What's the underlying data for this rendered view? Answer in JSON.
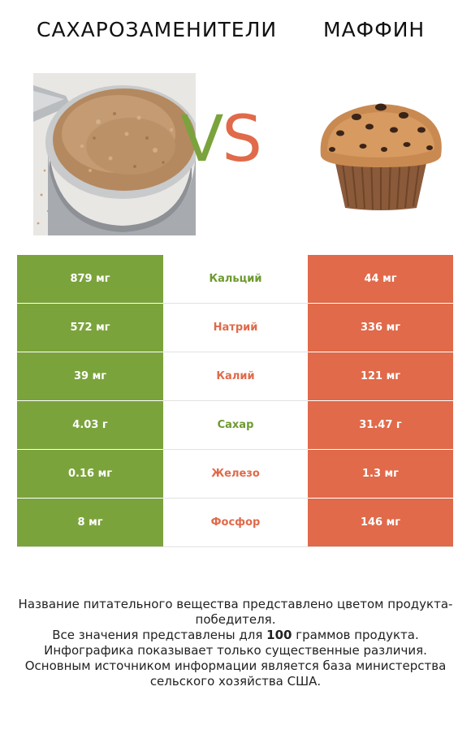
{
  "header": {
    "left_title": "САХАРОЗАМЕНИТЕЛИ",
    "right_title": "МАФФИН",
    "vs_v": "V",
    "vs_s": "S"
  },
  "colors": {
    "winner_left": "#7ba33c",
    "winner_right": "#e06a4a"
  },
  "images": {
    "left": "brown-sugar-substitute-in-measuring-cup-photo",
    "right": "chocolate-chip-muffin-photo"
  },
  "rows": [
    {
      "left": "879 мг",
      "nutrient": "Кальций",
      "right": "44 мг",
      "winner": "left"
    },
    {
      "left": "572 мг",
      "nutrient": "Натрий",
      "right": "336 мг",
      "winner": "right"
    },
    {
      "left": "39 мг",
      "nutrient": "Калий",
      "right": "121 мг",
      "winner": "right"
    },
    {
      "left": "4.03 г",
      "nutrient": "Сахар",
      "right": "31.47 г",
      "winner": "left"
    },
    {
      "left": "0.16 мг",
      "nutrient": "Железо",
      "right": "1.3 мг",
      "winner": "right"
    },
    {
      "left": "8 мг",
      "nutrient": "Фосфор",
      "right": "146 мг",
      "winner": "right"
    }
  ],
  "footer": {
    "line1": "Название питательного вещества представлено цветом продукта-победителя.",
    "line2_pre": "Все значения представлены для ",
    "line2_bold": "100",
    "line2_post": " граммов продукта.",
    "line3": "Инфографика показывает только существенные различия.",
    "line4": "Основным источником информации является база министерства сельского хозяйства США."
  }
}
